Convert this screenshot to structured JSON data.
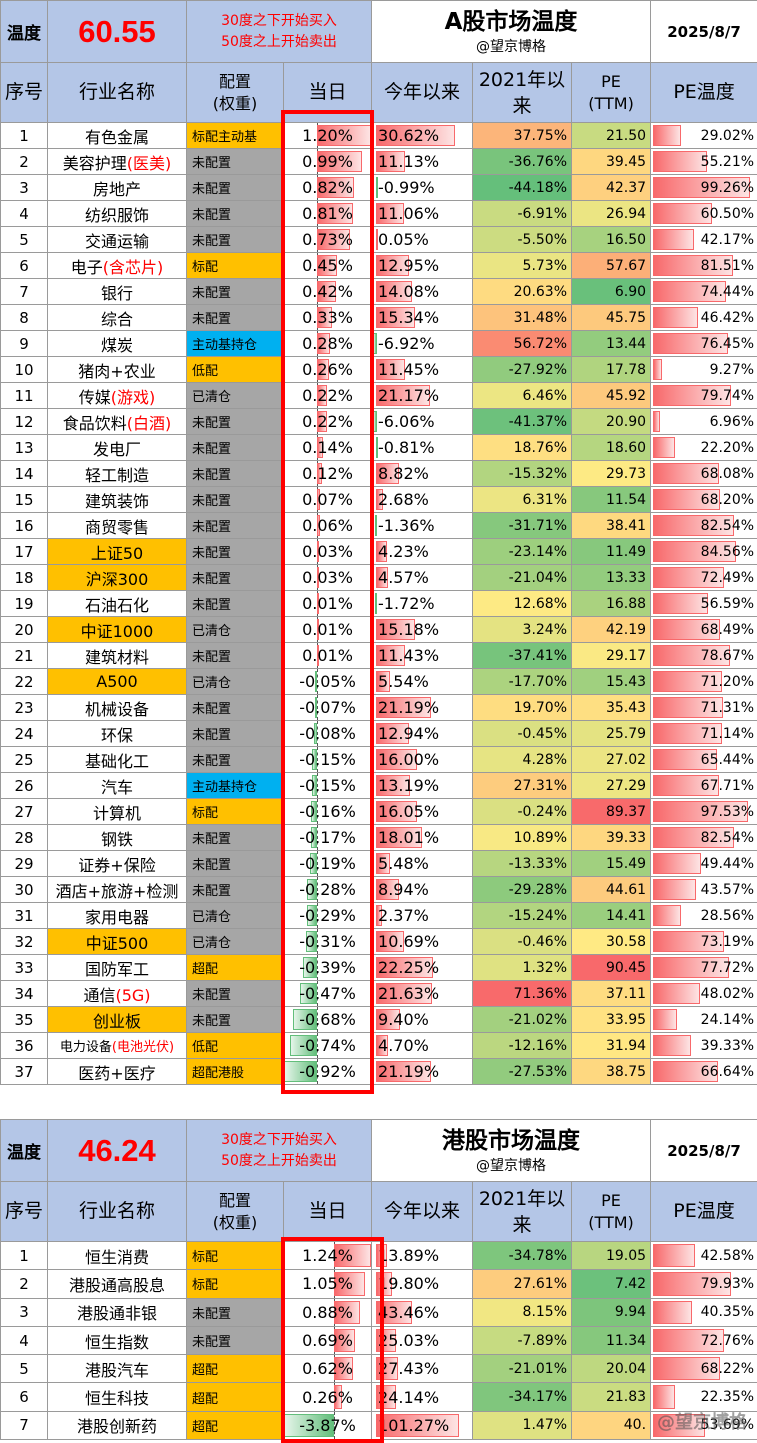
{
  "colors": {
    "header_blue": "#b4c6e7",
    "alloc_gold": "#ffc000",
    "alloc_gray": "#a6a6a6",
    "alloc_blue": "#00b0f0",
    "pos_bar": "#f8696b",
    "neg_bar": "#63be7b",
    "frame_red": "#ff0000"
  },
  "header_labels": {
    "temp_label": "温度",
    "idx": "序号",
    "name": "行业名称",
    "alloc_l1": "配置",
    "alloc_l2": "(权重)",
    "day": "当日",
    "ytd": "今年以来",
    "since2021": "2021年以来",
    "pe_l1": "PE",
    "pe_l2": "(TTM)",
    "pe_temp": "PE温度"
  },
  "a_market": {
    "temperature": "60.55",
    "note_buy": "30度之下开始买入",
    "note_sell": "50度之上开始卖出",
    "title": "A股市场温度",
    "author": "@望京博格",
    "date": "2025/8/7",
    "rows": [
      {
        "idx": "1",
        "name": "有色金属",
        "name_red": "",
        "gold": false,
        "alloc": "标配主动基",
        "alloc_color": "gold",
        "day": "1.20%",
        "day_v": 1.2,
        "ytd": "30.62%",
        "ytd_v": 30.62,
        "since": "37.75%",
        "since_v": 37.75,
        "pe": "21.50",
        "pe_v": 21.5,
        "pet": "29.02%",
        "pet_v": 29.02
      },
      {
        "idx": "2",
        "name": "美容护理",
        "name_red": "(医美)",
        "gold": false,
        "alloc": "未配置",
        "alloc_color": "gray",
        "day": "0.99%",
        "day_v": 0.99,
        "ytd": "11.13%",
        "ytd_v": 11.13,
        "since": "-36.76%",
        "since_v": -36.76,
        "pe": "39.45",
        "pe_v": 39.45,
        "pet": "55.21%",
        "pet_v": 55.21
      },
      {
        "idx": "3",
        "name": "房地产",
        "name_red": "",
        "gold": false,
        "alloc": "未配置",
        "alloc_color": "gray",
        "day": "0.82%",
        "day_v": 0.82,
        "ytd": "-0.99%",
        "ytd_v": -0.99,
        "since": "-44.18%",
        "since_v": -44.18,
        "pe": "42.37",
        "pe_v": 42.37,
        "pet": "99.26%",
        "pet_v": 99.26
      },
      {
        "idx": "4",
        "name": "纺织服饰",
        "name_red": "",
        "gold": false,
        "alloc": "未配置",
        "alloc_color": "gray",
        "day": "0.81%",
        "day_v": 0.81,
        "ytd": "11.06%",
        "ytd_v": 11.06,
        "since": "-6.91%",
        "since_v": -6.91,
        "pe": "26.94",
        "pe_v": 26.94,
        "pet": "60.50%",
        "pet_v": 60.5
      },
      {
        "idx": "5",
        "name": "交通运输",
        "name_red": "",
        "gold": false,
        "alloc": "未配置",
        "alloc_color": "gray",
        "day": "0.73%",
        "day_v": 0.73,
        "ytd": "0.05%",
        "ytd_v": 0.05,
        "since": "-5.50%",
        "since_v": -5.5,
        "pe": "16.50",
        "pe_v": 16.5,
        "pet": "42.17%",
        "pet_v": 42.17
      },
      {
        "idx": "6",
        "name": "电子",
        "name_red": "(含芯片)",
        "gold": false,
        "alloc": "标配",
        "alloc_color": "gold",
        "day": "0.45%",
        "day_v": 0.45,
        "ytd": "12.95%",
        "ytd_v": 12.95,
        "since": "5.73%",
        "since_v": 5.73,
        "pe": "57.67",
        "pe_v": 57.67,
        "pet": "81.51%",
        "pet_v": 81.51
      },
      {
        "idx": "7",
        "name": "银行",
        "name_red": "",
        "gold": false,
        "alloc": "未配置",
        "alloc_color": "gray",
        "day": "0.42%",
        "day_v": 0.42,
        "ytd": "14.08%",
        "ytd_v": 14.08,
        "since": "20.63%",
        "since_v": 20.63,
        "pe": "6.90",
        "pe_v": 6.9,
        "pet": "74.44%",
        "pet_v": 74.44
      },
      {
        "idx": "8",
        "name": "综合",
        "name_red": "",
        "gold": false,
        "alloc": "未配置",
        "alloc_color": "gray",
        "day": "0.33%",
        "day_v": 0.33,
        "ytd": "15.34%",
        "ytd_v": 15.34,
        "since": "31.48%",
        "since_v": 31.48,
        "pe": "45.75",
        "pe_v": 45.75,
        "pet": "46.42%",
        "pet_v": 46.42
      },
      {
        "idx": "9",
        "name": "煤炭",
        "name_red": "",
        "gold": false,
        "alloc": "主动基持仓",
        "alloc_color": "blue",
        "day": "0.28%",
        "day_v": 0.28,
        "ytd": "-6.92%",
        "ytd_v": -6.92,
        "since": "56.72%",
        "since_v": 56.72,
        "pe": "13.44",
        "pe_v": 13.44,
        "pet": "76.45%",
        "pet_v": 76.45
      },
      {
        "idx": "10",
        "name": "猪肉+农业",
        "name_red": "",
        "gold": false,
        "alloc": "低配",
        "alloc_color": "gold",
        "day": "0.26%",
        "day_v": 0.26,
        "ytd": "11.45%",
        "ytd_v": 11.45,
        "since": "-27.92%",
        "since_v": -27.92,
        "pe": "17.78",
        "pe_v": 17.78,
        "pet": "9.27%",
        "pet_v": 9.27
      },
      {
        "idx": "11",
        "name": "传媒",
        "name_red": "(游戏)",
        "gold": false,
        "alloc": "已清仓",
        "alloc_color": "gray",
        "day": "0.22%",
        "day_v": 0.22,
        "ytd": "21.17%",
        "ytd_v": 21.17,
        "since": "6.46%",
        "since_v": 6.46,
        "pe": "45.92",
        "pe_v": 45.92,
        "pet": "79.74%",
        "pet_v": 79.74
      },
      {
        "idx": "12",
        "name": "食品饮料",
        "name_red": "(白酒)",
        "gold": false,
        "alloc": "未配置",
        "alloc_color": "gray",
        "day": "0.22%",
        "day_v": 0.22,
        "ytd": "-6.06%",
        "ytd_v": -6.06,
        "since": "-41.37%",
        "since_v": -41.37,
        "pe": "20.90",
        "pe_v": 20.9,
        "pet": "6.96%",
        "pet_v": 6.96
      },
      {
        "idx": "13",
        "name": "发电厂",
        "name_red": "",
        "gold": false,
        "alloc": "未配置",
        "alloc_color": "gray",
        "day": "0.14%",
        "day_v": 0.14,
        "ytd": "-0.81%",
        "ytd_v": -0.81,
        "since": "18.76%",
        "since_v": 18.76,
        "pe": "18.60",
        "pe_v": 18.6,
        "pet": "22.20%",
        "pet_v": 22.2
      },
      {
        "idx": "14",
        "name": "轻工制造",
        "name_red": "",
        "gold": false,
        "alloc": "未配置",
        "alloc_color": "gray",
        "day": "0.12%",
        "day_v": 0.12,
        "ytd": "8.82%",
        "ytd_v": 8.82,
        "since": "-15.32%",
        "since_v": -15.32,
        "pe": "29.73",
        "pe_v": 29.73,
        "pet": "68.08%",
        "pet_v": 68.08
      },
      {
        "idx": "15",
        "name": "建筑装饰",
        "name_red": "",
        "gold": false,
        "alloc": "未配置",
        "alloc_color": "gray",
        "day": "0.07%",
        "day_v": 0.07,
        "ytd": "2.68%",
        "ytd_v": 2.68,
        "since": "6.31%",
        "since_v": 6.31,
        "pe": "11.54",
        "pe_v": 11.54,
        "pet": "68.20%",
        "pet_v": 68.2
      },
      {
        "idx": "16",
        "name": "商贸零售",
        "name_red": "",
        "gold": false,
        "alloc": "未配置",
        "alloc_color": "gray",
        "day": "0.06%",
        "day_v": 0.06,
        "ytd": "-1.36%",
        "ytd_v": -1.36,
        "since": "-31.71%",
        "since_v": -31.71,
        "pe": "38.41",
        "pe_v": 38.41,
        "pet": "82.54%",
        "pet_v": 82.54
      },
      {
        "idx": "17",
        "name": "上证50",
        "name_red": "",
        "gold": true,
        "alloc": "未配置",
        "alloc_color": "gray",
        "day": "0.03%",
        "day_v": 0.03,
        "ytd": "4.23%",
        "ytd_v": 4.23,
        "since": "-23.14%",
        "since_v": -23.14,
        "pe": "11.49",
        "pe_v": 11.49,
        "pet": "84.56%",
        "pet_v": 84.56
      },
      {
        "idx": "18",
        "name": "沪深300",
        "name_red": "",
        "gold": true,
        "alloc": "未配置",
        "alloc_color": "gray",
        "day": "0.03%",
        "day_v": 0.03,
        "ytd": "4.57%",
        "ytd_v": 4.57,
        "since": "-21.04%",
        "since_v": -21.04,
        "pe": "13.33",
        "pe_v": 13.33,
        "pet": "72.49%",
        "pet_v": 72.49
      },
      {
        "idx": "19",
        "name": "石油石化",
        "name_red": "",
        "gold": false,
        "alloc": "未配置",
        "alloc_color": "gray",
        "day": "0.01%",
        "day_v": 0.01,
        "ytd": "-1.72%",
        "ytd_v": -1.72,
        "since": "12.68%",
        "since_v": 12.68,
        "pe": "16.88",
        "pe_v": 16.88,
        "pet": "56.59%",
        "pet_v": 56.59
      },
      {
        "idx": "20",
        "name": "中证1000",
        "name_red": "",
        "gold": true,
        "alloc": "已清仓",
        "alloc_color": "gray",
        "day": "0.01%",
        "day_v": 0.01,
        "ytd": "15.18%",
        "ytd_v": 15.18,
        "since": "3.24%",
        "since_v": 3.24,
        "pe": "42.19",
        "pe_v": 42.19,
        "pet": "68.49%",
        "pet_v": 68.49
      },
      {
        "idx": "21",
        "name": "建筑材料",
        "name_red": "",
        "gold": false,
        "alloc": "未配置",
        "alloc_color": "gray",
        "day": "0.01%",
        "day_v": 0.01,
        "ytd": "11.43%",
        "ytd_v": 11.43,
        "since": "-37.41%",
        "since_v": -37.41,
        "pe": "29.17",
        "pe_v": 29.17,
        "pet": "78.67%",
        "pet_v": 78.67
      },
      {
        "idx": "22",
        "name": "A500",
        "name_red": "",
        "gold": true,
        "alloc": "已清仓",
        "alloc_color": "gray",
        "day": "-0.05%",
        "day_v": -0.05,
        "ytd": "5.54%",
        "ytd_v": 5.54,
        "since": "-17.70%",
        "since_v": -17.7,
        "pe": "15.43",
        "pe_v": 15.43,
        "pet": "71.20%",
        "pet_v": 71.2
      },
      {
        "idx": "23",
        "name": "机械设备",
        "name_red": "",
        "gold": false,
        "alloc": "未配置",
        "alloc_color": "gray",
        "day": "-0.07%",
        "day_v": -0.07,
        "ytd": "21.19%",
        "ytd_v": 21.19,
        "since": "19.70%",
        "since_v": 19.7,
        "pe": "35.43",
        "pe_v": 35.43,
        "pet": "71.31%",
        "pet_v": 71.31
      },
      {
        "idx": "24",
        "name": "环保",
        "name_red": "",
        "gold": false,
        "alloc": "未配置",
        "alloc_color": "gray",
        "day": "-0.08%",
        "day_v": -0.08,
        "ytd": "12.94%",
        "ytd_v": 12.94,
        "since": "-0.45%",
        "since_v": -0.45,
        "pe": "25.79",
        "pe_v": 25.79,
        "pet": "71.14%",
        "pet_v": 71.14
      },
      {
        "idx": "25",
        "name": "基础化工",
        "name_red": "",
        "gold": false,
        "alloc": "未配置",
        "alloc_color": "gray",
        "day": "-0.15%",
        "day_v": -0.15,
        "ytd": "16.00%",
        "ytd_v": 16.0,
        "since": "4.28%",
        "since_v": 4.28,
        "pe": "27.02",
        "pe_v": 27.02,
        "pet": "65.44%",
        "pet_v": 65.44
      },
      {
        "idx": "26",
        "name": "汽车",
        "name_red": "",
        "gold": false,
        "alloc": "主动基持仓",
        "alloc_color": "blue",
        "day": "-0.15%",
        "day_v": -0.15,
        "ytd": "13.19%",
        "ytd_v": 13.19,
        "since": "27.31%",
        "since_v": 27.31,
        "pe": "27.29",
        "pe_v": 27.29,
        "pet": "67.71%",
        "pet_v": 67.71
      },
      {
        "idx": "27",
        "name": "计算机",
        "name_red": "",
        "gold": false,
        "alloc": "标配",
        "alloc_color": "gold",
        "day": "-0.16%",
        "day_v": -0.16,
        "ytd": "16.05%",
        "ytd_v": 16.05,
        "since": "-0.24%",
        "since_v": -0.24,
        "pe": "89.37",
        "pe_v": 89.37,
        "pet": "97.53%",
        "pet_v": 97.53
      },
      {
        "idx": "28",
        "name": "钢铁",
        "name_red": "",
        "gold": false,
        "alloc": "未配置",
        "alloc_color": "gray",
        "day": "-0.17%",
        "day_v": -0.17,
        "ytd": "18.01%",
        "ytd_v": 18.01,
        "since": "10.89%",
        "since_v": 10.89,
        "pe": "39.33",
        "pe_v": 39.33,
        "pet": "82.54%",
        "pet_v": 82.54
      },
      {
        "idx": "29",
        "name": "证券+保险",
        "name_red": "",
        "gold": false,
        "alloc": "未配置",
        "alloc_color": "gray",
        "day": "-0.19%",
        "day_v": -0.19,
        "ytd": "5.48%",
        "ytd_v": 5.48,
        "since": "-13.33%",
        "since_v": -13.33,
        "pe": "15.49",
        "pe_v": 15.49,
        "pet": "49.44%",
        "pet_v": 49.44
      },
      {
        "idx": "30",
        "name": "酒店+旅游+检测",
        "name_red": "",
        "gold": false,
        "alloc": "未配置",
        "alloc_color": "gray",
        "day": "-0.28%",
        "day_v": -0.28,
        "ytd": "8.94%",
        "ytd_v": 8.94,
        "since": "-29.28%",
        "since_v": -29.28,
        "pe": "44.61",
        "pe_v": 44.61,
        "pet": "43.57%",
        "pet_v": 43.57
      },
      {
        "idx": "31",
        "name": "家用电器",
        "name_red": "",
        "gold": false,
        "alloc": "已清仓",
        "alloc_color": "gray",
        "day": "-0.29%",
        "day_v": -0.29,
        "ytd": "2.37%",
        "ytd_v": 2.37,
        "since": "-15.24%",
        "since_v": -15.24,
        "pe": "14.41",
        "pe_v": 14.41,
        "pet": "28.56%",
        "pet_v": 28.56
      },
      {
        "idx": "32",
        "name": "中证500",
        "name_red": "",
        "gold": true,
        "alloc": "已清仓",
        "alloc_color": "gray",
        "day": "-0.31%",
        "day_v": -0.31,
        "ytd": "10.69%",
        "ytd_v": 10.69,
        "since": "-0.46%",
        "since_v": -0.46,
        "pe": "30.58",
        "pe_v": 30.58,
        "pet": "73.19%",
        "pet_v": 73.19
      },
      {
        "idx": "33",
        "name": "国防军工",
        "name_red": "",
        "gold": false,
        "alloc": "超配",
        "alloc_color": "gold",
        "day": "-0.39%",
        "day_v": -0.39,
        "ytd": "22.25%",
        "ytd_v": 22.25,
        "since": "1.32%",
        "since_v": 1.32,
        "pe": "90.45",
        "pe_v": 90.45,
        "pet": "77.72%",
        "pet_v": 77.72
      },
      {
        "idx": "34",
        "name": "通信",
        "name_red": "(5G)",
        "gold": false,
        "alloc": "未配置",
        "alloc_color": "gray",
        "day": "-0.47%",
        "day_v": -0.47,
        "ytd": "21.63%",
        "ytd_v": 21.63,
        "since": "71.36%",
        "since_v": 71.36,
        "pe": "37.11",
        "pe_v": 37.11,
        "pet": "48.02%",
        "pet_v": 48.02
      },
      {
        "idx": "35",
        "name": "创业板",
        "name_red": "",
        "gold": true,
        "alloc": "未配置",
        "alloc_color": "gray",
        "day": "-0.68%",
        "day_v": -0.68,
        "ytd": "9.40%",
        "ytd_v": 9.4,
        "since": "-21.02%",
        "since_v": -21.02,
        "pe": "33.95",
        "pe_v": 33.95,
        "pet": "24.14%",
        "pet_v": 24.14
      },
      {
        "idx": "36",
        "name": "电力设备",
        "name_red": "(电池光伏)",
        "gold": false,
        "small": true,
        "alloc": "低配",
        "alloc_color": "gold",
        "day": "-0.74%",
        "day_v": -0.74,
        "ytd": "4.70%",
        "ytd_v": 4.7,
        "since": "-12.16%",
        "since_v": -12.16,
        "pe": "31.94",
        "pe_v": 31.94,
        "pet": "39.33%",
        "pet_v": 39.33
      },
      {
        "idx": "37",
        "name": "医药+医疗",
        "name_red": "",
        "gold": false,
        "alloc": "超配港股",
        "alloc_color": "gold",
        "day": "-0.92%",
        "day_v": -0.92,
        "ytd": "21.19%",
        "ytd_v": 21.19,
        "since": "-27.53%",
        "since_v": -27.53,
        "pe": "38.75",
        "pe_v": 38.75,
        "pet": "66.64%",
        "pet_v": 66.64
      }
    ]
  },
  "hk_market": {
    "temperature": "46.24",
    "note_buy": "30度之下开始买入",
    "note_sell": "50度之上开始卖出",
    "title": "港股市场温度",
    "author": "@望京博格",
    "date": "2025/8/7",
    "rows": [
      {
        "idx": "1",
        "name": "恒生消费",
        "name_red": "",
        "gold": false,
        "alloc": "标配",
        "alloc_color": "gold",
        "day": "1.24%",
        "day_v": 1.24,
        "ytd": "13.89%",
        "ytd_v": 13.89,
        "since": "-34.78%",
        "since_v": -34.78,
        "pe": "19.05",
        "pe_v": 19.05,
        "pet": "42.58%",
        "pet_v": 42.58
      },
      {
        "idx": "2",
        "name": "港股通高股息",
        "name_red": "",
        "gold": false,
        "alloc": "标配",
        "alloc_color": "gold",
        "day": "1.05%",
        "day_v": 1.05,
        "ytd": "19.80%",
        "ytd_v": 19.8,
        "since": "27.61%",
        "since_v": 27.61,
        "pe": "7.42",
        "pe_v": 7.42,
        "pet": "79.93%",
        "pet_v": 79.93
      },
      {
        "idx": "3",
        "name": "港股通非银",
        "name_red": "",
        "gold": false,
        "alloc": "未配置",
        "alloc_color": "gray",
        "day": "0.88%",
        "day_v": 0.88,
        "ytd": "43.46%",
        "ytd_v": 43.46,
        "since": "8.15%",
        "since_v": 8.15,
        "pe": "9.94",
        "pe_v": 9.94,
        "pet": "40.35%",
        "pet_v": 40.35
      },
      {
        "idx": "4",
        "name": "恒生指数",
        "name_red": "",
        "gold": false,
        "alloc": "未配置",
        "alloc_color": "gray",
        "day": "0.69%",
        "day_v": 0.69,
        "ytd": "25.03%",
        "ytd_v": 25.03,
        "since": "-7.89%",
        "since_v": -7.89,
        "pe": "11.34",
        "pe_v": 11.34,
        "pet": "72.76%",
        "pet_v": 72.76
      },
      {
        "idx": "5",
        "name": "港股汽车",
        "name_red": "",
        "gold": false,
        "alloc": "超配",
        "alloc_color": "gold",
        "day": "0.62%",
        "day_v": 0.62,
        "ytd": "27.43%",
        "ytd_v": 27.43,
        "since": "-21.01%",
        "since_v": -21.01,
        "pe": "20.04",
        "pe_v": 20.04,
        "pet": "68.22%",
        "pet_v": 68.22
      },
      {
        "idx": "6",
        "name": "恒生科技",
        "name_red": "",
        "gold": false,
        "alloc": "超配",
        "alloc_color": "gold",
        "day": "0.26%",
        "day_v": 0.26,
        "ytd": "24.14%",
        "ytd_v": 24.14,
        "since": "-34.17%",
        "since_v": -34.17,
        "pe": "21.83",
        "pe_v": 21.83,
        "pet": "22.35%",
        "pet_v": 22.35
      },
      {
        "idx": "7",
        "name": "港股创新药",
        "name_red": "",
        "gold": false,
        "alloc": "超配",
        "alloc_color": "gold",
        "day": "-3.87%",
        "day_v": -3.87,
        "ytd": "101.27%",
        "ytd_v": 101.27,
        "since": "1.47%",
        "since_v": 1.47,
        "pe": "40.",
        "pe_v": 40,
        "pet": "53.69%",
        "pet_v": 53.69
      }
    ]
  },
  "watermark": "@望京博格"
}
